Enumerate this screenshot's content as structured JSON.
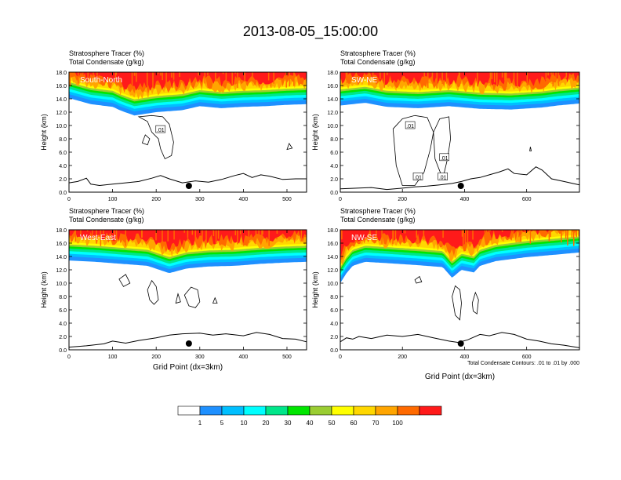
{
  "figure": {
    "title": "2013-08-05_15:00:00",
    "footnote": "Total Condensate Contours: .01 to .01 by .000"
  },
  "colorbar": {
    "colors": [
      "#ffffff",
      "#1e90ff",
      "#00bfff",
      "#00ffff",
      "#00e68a",
      "#00e600",
      "#9acd32",
      "#ffff00",
      "#ffd700",
      "#ffa500",
      "#ff6a00",
      "#ff1a1a"
    ],
    "labels": [
      "1",
      "5",
      "10",
      "20",
      "30",
      "40",
      "50",
      "60",
      "70",
      "100"
    ]
  },
  "chart_data": [
    {
      "type": "heatmap",
      "panel": "South-North",
      "header1": "Stratosphere Tracer   (%)",
      "header2": "Total Condensate   (g/kg)",
      "ylabel": "Height (km)",
      "xlabel": "",
      "xlim": [
        0,
        545
      ],
      "ylim": [
        0,
        18
      ],
      "xticks": [
        0,
        100,
        200,
        300,
        400,
        500
      ],
      "yticks": [
        "0.0",
        "2.0",
        "4.0",
        "6.0",
        "8.0",
        "10.0",
        "12.0",
        "14.0",
        "16.0",
        "18.0"
      ],
      "marker_x": 275,
      "contour_label": ".01",
      "contour_label_x": [
        210
      ],
      "contour_label_y": [
        9.4
      ],
      "tracer_base_km": [
        [
          0,
          14.1
        ],
        [
          50,
          13.2
        ],
        [
          100,
          12.8
        ],
        [
          120,
          12.2
        ],
        [
          150,
          11.5
        ],
        [
          200,
          12.0
        ],
        [
          260,
          12.3
        ],
        [
          300,
          12.9
        ],
        [
          350,
          12.6
        ],
        [
          400,
          12.8
        ],
        [
          450,
          12.9
        ],
        [
          500,
          13.1
        ],
        [
          545,
          13.2
        ]
      ],
      "terrain_km": [
        [
          0,
          1.4
        ],
        [
          20,
          1.6
        ],
        [
          40,
          2.1
        ],
        [
          50,
          1.2
        ],
        [
          70,
          1.0
        ],
        [
          100,
          1.2
        ],
        [
          130,
          1.4
        ],
        [
          160,
          1.6
        ],
        [
          190,
          2.1
        ],
        [
          210,
          2.5
        ],
        [
          230,
          2.0
        ],
        [
          260,
          1.4
        ],
        [
          290,
          1.7
        ],
        [
          320,
          1.5
        ],
        [
          350,
          1.9
        ],
        [
          380,
          2.5
        ],
        [
          400,
          2.8
        ],
        [
          420,
          2.2
        ],
        [
          440,
          2.6
        ],
        [
          460,
          2.4
        ],
        [
          490,
          1.9
        ],
        [
          520,
          2.0
        ],
        [
          545,
          2.0
        ]
      ],
      "contours": [
        [
          [
            160,
            11.3
          ],
          [
            180,
            10.6
          ],
          [
            190,
            9.0
          ],
          [
            205,
            8.0
          ],
          [
            210,
            6.5
          ],
          [
            220,
            5.0
          ],
          [
            235,
            5.5
          ],
          [
            240,
            7.5
          ],
          [
            230,
            10.2
          ],
          [
            215,
            11.3
          ],
          [
            190,
            11.5
          ],
          [
            160,
            11.3
          ]
        ],
        [
          [
            168,
            7.4
          ],
          [
            175,
            8.6
          ],
          [
            185,
            8.0
          ],
          [
            180,
            7.1
          ],
          [
            168,
            7.4
          ]
        ],
        [
          [
            500,
            6.4
          ],
          [
            505,
            7.3
          ],
          [
            512,
            6.6
          ],
          [
            500,
            6.4
          ]
        ]
      ]
    },
    {
      "type": "heatmap",
      "panel": "SW-NE",
      "header1": "Stratosphere Tracer   (%)",
      "header2": "Total Condensate   (g/kg)",
      "ylabel": "Height (km)",
      "xlabel": "",
      "xlim": [
        0,
        770
      ],
      "ylim": [
        0,
        18
      ],
      "xticks": [
        0,
        200,
        400,
        600
      ],
      "yticks": [
        "0.0",
        "2.0",
        "4.0",
        "6.0",
        "8.0",
        "10.0",
        "12.0",
        "14.0",
        "16.0",
        "18.0"
      ],
      "marker_x": 388,
      "contour_label": ".01",
      "contour_label_x": [
        225,
        250,
        330,
        335
      ],
      "contour_label_y": [
        10.0,
        2.3,
        2.3,
        5.2
      ],
      "tracer_base_km": [
        [
          0,
          13.0
        ],
        [
          40,
          13.2
        ],
        [
          80,
          13.4
        ],
        [
          150,
          12.8
        ],
        [
          250,
          12.6
        ],
        [
          350,
          12.9
        ],
        [
          450,
          12.5
        ],
        [
          550,
          12.4
        ],
        [
          650,
          12.7
        ],
        [
          700,
          13.0
        ],
        [
          770,
          13.3
        ]
      ],
      "terrain_km": [
        [
          0,
          0.5
        ],
        [
          100,
          0.7
        ],
        [
          150,
          0.4
        ],
        [
          200,
          0.6
        ],
        [
          240,
          0.8
        ],
        [
          280,
          0.9
        ],
        [
          320,
          1.1
        ],
        [
          360,
          1.3
        ],
        [
          390,
          1.6
        ],
        [
          420,
          2.0
        ],
        [
          450,
          2.2
        ],
        [
          480,
          2.6
        ],
        [
          510,
          3.0
        ],
        [
          540,
          3.5
        ],
        [
          560,
          2.8
        ],
        [
          600,
          2.6
        ],
        [
          630,
          3.8
        ],
        [
          650,
          3.3
        ],
        [
          680,
          2.0
        ],
        [
          720,
          1.6
        ],
        [
          770,
          1.1
        ]
      ],
      "contours": [
        [
          [
            170,
            9.5
          ],
          [
            200,
            11.0
          ],
          [
            240,
            11.5
          ],
          [
            280,
            11.2
          ],
          [
            300,
            9.0
          ],
          [
            290,
            6.5
          ],
          [
            270,
            3.0
          ],
          [
            240,
            1.0
          ],
          [
            200,
            1.0
          ],
          [
            180,
            4.0
          ],
          [
            170,
            9.5
          ]
        ],
        [
          [
            300,
            9.0
          ],
          [
            320,
            11.0
          ],
          [
            350,
            11.3
          ],
          [
            355,
            8.0
          ],
          [
            345,
            5.0
          ],
          [
            330,
            2.0
          ],
          [
            305,
            5.0
          ],
          [
            300,
            9.0
          ]
        ],
        [
          [
            610,
            6.2
          ],
          [
            612,
            6.8
          ],
          [
            615,
            6.2
          ],
          [
            610,
            6.2
          ]
        ]
      ]
    },
    {
      "type": "heatmap",
      "panel": "West-East",
      "header1": "Stratosphere Tracer   (%)",
      "header2": "Total Condensate   (g/kg)",
      "ylabel": "Height (km)",
      "xlabel": "Grid Point (dx=3km)",
      "xlim": [
        0,
        545
      ],
      "ylim": [
        0,
        18
      ],
      "xticks": [
        0,
        100,
        200,
        300,
        400,
        500
      ],
      "yticks": [
        "0.0",
        "2.0",
        "4.0",
        "6.0",
        "8.0",
        "10.0",
        "12.0",
        "14.0",
        "16.0",
        "18.0"
      ],
      "marker_x": 275,
      "contour_label": "",
      "contour_label_x": [],
      "contour_label_y": [],
      "tracer_base_km": [
        [
          0,
          13.4
        ],
        [
          60,
          13.2
        ],
        [
          120,
          12.9
        ],
        [
          180,
          12.6
        ],
        [
          230,
          11.5
        ],
        [
          270,
          12.2
        ],
        [
          320,
          12.5
        ],
        [
          380,
          12.6
        ],
        [
          440,
          12.9
        ],
        [
          500,
          13.1
        ],
        [
          545,
          13.2
        ]
      ],
      "terrain_km": [
        [
          0,
          0.4
        ],
        [
          40,
          0.6
        ],
        [
          80,
          0.9
        ],
        [
          100,
          1.3
        ],
        [
          130,
          1.0
        ],
        [
          160,
          1.4
        ],
        [
          200,
          1.8
        ],
        [
          230,
          2.2
        ],
        [
          260,
          2.4
        ],
        [
          300,
          2.5
        ],
        [
          330,
          2.2
        ],
        [
          360,
          2.4
        ],
        [
          400,
          2.1
        ],
        [
          430,
          2.6
        ],
        [
          460,
          2.3
        ],
        [
          490,
          1.7
        ],
        [
          520,
          1.6
        ],
        [
          545,
          1.2
        ]
      ],
      "contours": [
        [
          [
            115,
            10.6
          ],
          [
            130,
            11.3
          ],
          [
            140,
            10.0
          ],
          [
            125,
            9.5
          ],
          [
            115,
            10.6
          ]
        ],
        [
          [
            180,
            9.0
          ],
          [
            190,
            10.4
          ],
          [
            200,
            9.5
          ],
          [
            205,
            7.5
          ],
          [
            195,
            6.8
          ],
          [
            185,
            7.5
          ],
          [
            180,
            9.0
          ]
        ],
        [
          [
            265,
            8.2
          ],
          [
            280,
            9.4
          ],
          [
            295,
            9.0
          ],
          [
            300,
            7.2
          ],
          [
            290,
            6.3
          ],
          [
            275,
            6.6
          ],
          [
            265,
            8.2
          ]
        ],
        [
          [
            245,
            7.0
          ],
          [
            250,
            8.4
          ],
          [
            256,
            7.2
          ],
          [
            245,
            7.0
          ]
        ],
        [
          [
            330,
            7.0
          ],
          [
            335,
            7.8
          ],
          [
            340,
            7.0
          ],
          [
            330,
            7.0
          ]
        ]
      ]
    },
    {
      "type": "heatmap",
      "panel": "NW-SE",
      "header1": "Stratosphere Tracer   (%)",
      "header2": "Total Condensate   (g/kg)",
      "ylabel": "Height (km)",
      "xlabel": "Grid Point (dx=3km)",
      "xlim": [
        0,
        770
      ],
      "ylim": [
        0,
        18
      ],
      "xticks": [
        0,
        200,
        400,
        600
      ],
      "yticks": [
        "0.0",
        "2.0",
        "4.0",
        "6.0",
        "8.0",
        "10.0",
        "12.0",
        "14.0",
        "16.0",
        "18.0"
      ],
      "marker_x": 388,
      "contour_label": "",
      "contour_label_x": [],
      "contour_label_y": [],
      "tracer_base_km": [
        [
          0,
          10.0
        ],
        [
          20,
          11.5
        ],
        [
          40,
          12.6
        ],
        [
          80,
          13.2
        ],
        [
          150,
          13.0
        ],
        [
          250,
          12.7
        ],
        [
          330,
          12.4
        ],
        [
          360,
          10.8
        ],
        [
          390,
          12.0
        ],
        [
          430,
          11.6
        ],
        [
          450,
          12.6
        ],
        [
          500,
          13.3
        ],
        [
          600,
          13.9
        ],
        [
          700,
          14.3
        ],
        [
          770,
          14.6
        ]
      ],
      "terrain_km": [
        [
          0,
          1.2
        ],
        [
          20,
          1.8
        ],
        [
          40,
          1.6
        ],
        [
          60,
          2.0
        ],
        [
          100,
          1.7
        ],
        [
          150,
          2.2
        ],
        [
          200,
          2.0
        ],
        [
          250,
          2.3
        ],
        [
          300,
          1.8
        ],
        [
          350,
          1.3
        ],
        [
          380,
          1.1
        ],
        [
          410,
          1.5
        ],
        [
          450,
          2.3
        ],
        [
          480,
          2.1
        ],
        [
          520,
          2.6
        ],
        [
          560,
          2.3
        ],
        [
          600,
          1.6
        ],
        [
          640,
          1.3
        ],
        [
          680,
          0.9
        ],
        [
          720,
          0.7
        ],
        [
          770,
          0.3
        ]
      ],
      "contours": [
        [
          [
            360,
            8.0
          ],
          [
            370,
            9.6
          ],
          [
            385,
            9.0
          ],
          [
            390,
            7.0
          ],
          [
            385,
            4.5
          ],
          [
            370,
            5.2
          ],
          [
            360,
            8.0
          ]
        ],
        [
          [
            425,
            7.0
          ],
          [
            435,
            8.6
          ],
          [
            445,
            7.5
          ],
          [
            440,
            5.4
          ],
          [
            428,
            5.8
          ],
          [
            425,
            7.0
          ]
        ],
        [
          [
            240,
            10.5
          ],
          [
            255,
            11.0
          ],
          [
            262,
            10.2
          ],
          [
            245,
            10.0
          ],
          [
            240,
            10.5
          ]
        ]
      ]
    }
  ]
}
